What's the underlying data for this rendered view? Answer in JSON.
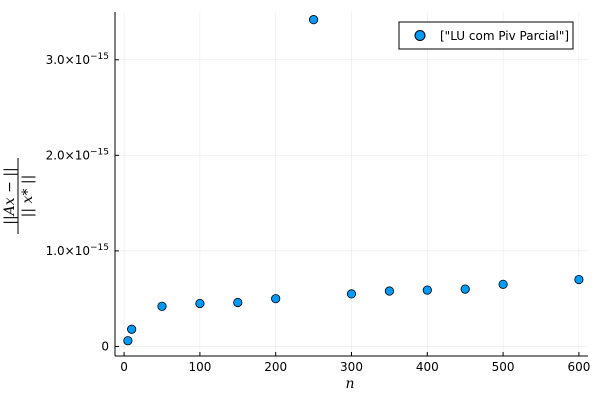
{
  "chart_data": {
    "type": "scatter",
    "title": "",
    "xlabel": "n",
    "ylabel": "||Ax − || / || x* ||",
    "xlim": [
      -12,
      612
    ],
    "ylim": [
      -1e-16,
      3.5e-15
    ],
    "x_ticks": [
      0,
      100,
      200,
      300,
      400,
      500,
      600
    ],
    "x_tick_labels": [
      "0",
      "100",
      "200",
      "300",
      "400",
      "500",
      "600"
    ],
    "y_ticks": [
      0,
      1e-15,
      2e-15,
      3e-15
    ],
    "y_tick_labels": [
      {
        "mantissa": "0",
        "exp": ""
      },
      {
        "mantissa": "1.0×10",
        "exp": "−15"
      },
      {
        "mantissa": "2.0×10",
        "exp": "−15"
      },
      {
        "mantissa": "3.0×10",
        "exp": "−15"
      }
    ],
    "grid": true,
    "legend_position": "top-right",
    "series": [
      {
        "name": "[\"LU com Piv Parcial\"]",
        "color": "#009af9",
        "points": [
          {
            "x": 5,
            "y": 6e-17
          },
          {
            "x": 10,
            "y": 1.8e-16
          },
          {
            "x": 50,
            "y": 4.2e-16
          },
          {
            "x": 100,
            "y": 4.5e-16
          },
          {
            "x": 150,
            "y": 4.6e-16
          },
          {
            "x": 200,
            "y": 5e-16
          },
          {
            "x": 250,
            "y": 3.42e-15
          },
          {
            "x": 300,
            "y": 5.5e-16
          },
          {
            "x": 350,
            "y": 5.8e-16
          },
          {
            "x": 400,
            "y": 5.9e-16
          },
          {
            "x": 450,
            "y": 6e-16
          },
          {
            "x": 500,
            "y": 6.5e-16
          },
          {
            "x": 600,
            "y": 7e-16
          }
        ]
      }
    ]
  }
}
